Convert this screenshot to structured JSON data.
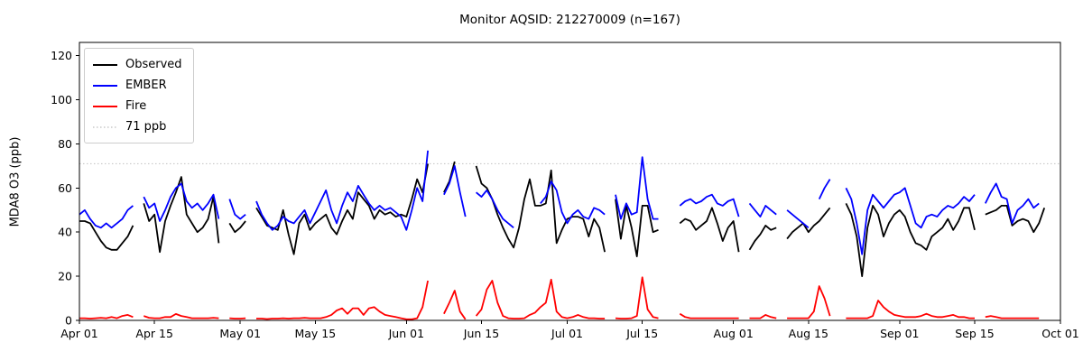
{
  "title": "Monitor AQSID: 212270009 (n=167)",
  "legend": {
    "items": [
      {
        "label": "Observed",
        "color": "#000000",
        "dash": ""
      },
      {
        "label": "EMBER",
        "color": "#0000ff",
        "dash": ""
      },
      {
        "label": "Fire",
        "color": "#ff0000",
        "dash": ""
      },
      {
        "label": "71 ppb",
        "color": "#c8c8c8",
        "dash": "1.5 2.5"
      }
    ]
  },
  "chart_data": {
    "type": "line",
    "title": "Monitor AQSID: 212270009 (n=167)",
    "xlabel": "",
    "ylabel": "MDA8 O3 (ppb)",
    "ylim": [
      0,
      126
    ],
    "yticks": [
      0,
      20,
      40,
      60,
      80,
      100,
      120
    ],
    "x_start_date": "Apr 01",
    "x_total_days": 183,
    "x_tick_days": [
      0,
      14,
      30,
      44,
      61,
      75,
      91,
      105,
      122,
      136,
      153,
      167,
      183
    ],
    "x_tick_labels": [
      "Apr 01",
      "Apr 15",
      "May 01",
      "May 15",
      "Jun 01",
      "Jun 15",
      "Jul 01",
      "Jul 15",
      "Aug 01",
      "Aug 15",
      "Sep 01",
      "Sep 15",
      "Oct 01"
    ],
    "grid": false,
    "legend_position": "upper left",
    "threshold": {
      "value": 71,
      "label": "71 ppb",
      "color": "#c8c8c8",
      "style": "dotted"
    },
    "series": [
      {
        "name": "Observed",
        "color": "#000000",
        "values": [
          45,
          45,
          44,
          40,
          36,
          33,
          32,
          32,
          35,
          38,
          43,
          null,
          53,
          45,
          48,
          31,
          45,
          52,
          58,
          65,
          48,
          44,
          40,
          42,
          46,
          56,
          35,
          null,
          44,
          40,
          42,
          45,
          null,
          51,
          47,
          43,
          42,
          41,
          50,
          39,
          30,
          44,
          48,
          41,
          44,
          46,
          48,
          42,
          39,
          45,
          50,
          46,
          58,
          55,
          52,
          46,
          50,
          48,
          49,
          47,
          48,
          47,
          55,
          64,
          58,
          71,
          null,
          null,
          58,
          63,
          72,
          null,
          null,
          null,
          70,
          62,
          60,
          55,
          48,
          42,
          37,
          33,
          42,
          55,
          64,
          52,
          52,
          53,
          68,
          35,
          41,
          46,
          47,
          47,
          46,
          38,
          46,
          42,
          31,
          null,
          55,
          37,
          52,
          42,
          29,
          52,
          52,
          40,
          41,
          null,
          null,
          null,
          44,
          46,
          45,
          41,
          43,
          45,
          51,
          44,
          36,
          42,
          45,
          31,
          null,
          32,
          36,
          39,
          43,
          41,
          42,
          null,
          37,
          40,
          42,
          44,
          40,
          43,
          45,
          48,
          51,
          null,
          null,
          53,
          48,
          38,
          20,
          42,
          52,
          48,
          38,
          44,
          48,
          50,
          47,
          40,
          35,
          34,
          32,
          38,
          40,
          42,
          46,
          41,
          45,
          51,
          51,
          41,
          null,
          48,
          49,
          50,
          52,
          52,
          43,
          45,
          46,
          45,
          40,
          44,
          51,
          null,
          null,
          null
        ]
      },
      {
        "name": "EMBER",
        "color": "#0000ff",
        "values": [
          48,
          50,
          46,
          43,
          42,
          44,
          42,
          44,
          46,
          50,
          52,
          null,
          56,
          51,
          53,
          45,
          50,
          56,
          60,
          62,
          54,
          51,
          53,
          50,
          53,
          57,
          46,
          null,
          55,
          48,
          46,
          48,
          null,
          54,
          48,
          44,
          41,
          43,
          47,
          45,
          44,
          47,
          50,
          44,
          49,
          54,
          59,
          50,
          44,
          52,
          58,
          54,
          61,
          57,
          53,
          50,
          52,
          50,
          51,
          49,
          47,
          41,
          50,
          60,
          54,
          77,
          null,
          null,
          57,
          62,
          70,
          58,
          47,
          null,
          58,
          56,
          59,
          55,
          50,
          46,
          44,
          42,
          null,
          null,
          null,
          null,
          53,
          56,
          63,
          59,
          49,
          44,
          48,
          50,
          47,
          46,
          51,
          50,
          48,
          null,
          57,
          46,
          53,
          48,
          49,
          74,
          55,
          46,
          46,
          null,
          null,
          null,
          52,
          54,
          55,
          53,
          54,
          56,
          57,
          53,
          52,
          54,
          55,
          47,
          null,
          53,
          50,
          47,
          52,
          50,
          48,
          null,
          50,
          48,
          46,
          44,
          42,
          null,
          55,
          60,
          64,
          null,
          null,
          60,
          55,
          44,
          30,
          50,
          57,
          54,
          51,
          54,
          57,
          58,
          60,
          52,
          44,
          42,
          47,
          48,
          47,
          50,
          52,
          51,
          53,
          56,
          54,
          57,
          null,
          53,
          58,
          62,
          56,
          55,
          44,
          50,
          52,
          55,
          51,
          53,
          null,
          null,
          null,
          null
        ]
      },
      {
        "name": "Fire",
        "color": "#ff0000",
        "values": [
          1,
          1,
          0.8,
          1,
          1.2,
          1,
          1.5,
          1,
          2,
          2.5,
          1.5,
          null,
          2,
          1.2,
          1,
          1,
          1.5,
          1.5,
          2.9,
          2,
          1.5,
          1,
          1,
          1,
          1,
          1.2,
          1,
          null,
          1,
          0.8,
          0.8,
          1,
          null,
          0.8,
          0.8,
          0.6,
          0.8,
          0.8,
          1,
          0.8,
          1,
          1,
          1.2,
          1,
          1,
          1,
          1.5,
          2.5,
          4.5,
          5.5,
          3,
          5.5,
          5.5,
          2.5,
          5.5,
          6,
          4,
          2.5,
          2,
          1.5,
          1,
          0.5,
          0.5,
          1,
          6,
          18,
          null,
          null,
          3,
          8,
          13.5,
          4,
          0.5,
          null,
          2,
          5,
          14,
          18,
          8,
          2,
          1,
          0.8,
          0.8,
          1,
          2.5,
          3.5,
          6,
          8,
          18.5,
          4,
          1.5,
          1,
          1.5,
          2.5,
          1.5,
          1,
          1,
          0.8,
          0.8,
          null,
          1,
          0.8,
          0.8,
          1,
          2,
          19.5,
          5,
          1.5,
          1,
          null,
          null,
          null,
          3,
          1.5,
          1,
          1,
          1,
          1,
          1,
          1,
          1,
          1,
          1,
          1,
          null,
          1,
          1,
          1,
          2.5,
          1.5,
          1,
          null,
          1,
          1,
          1,
          1,
          1,
          4,
          15.5,
          10,
          2,
          null,
          null,
          1,
          1,
          1,
          1,
          1,
          2,
          9,
          6,
          4,
          2.5,
          2,
          1.5,
          1.5,
          1.5,
          2,
          3,
          2,
          1.5,
          1.5,
          2,
          2.5,
          1.5,
          1.5,
          1,
          1,
          null,
          1.5,
          2,
          1.5,
          1,
          1,
          1,
          1,
          1,
          1,
          1,
          1,
          null,
          null,
          null,
          null
        ]
      }
    ]
  }
}
